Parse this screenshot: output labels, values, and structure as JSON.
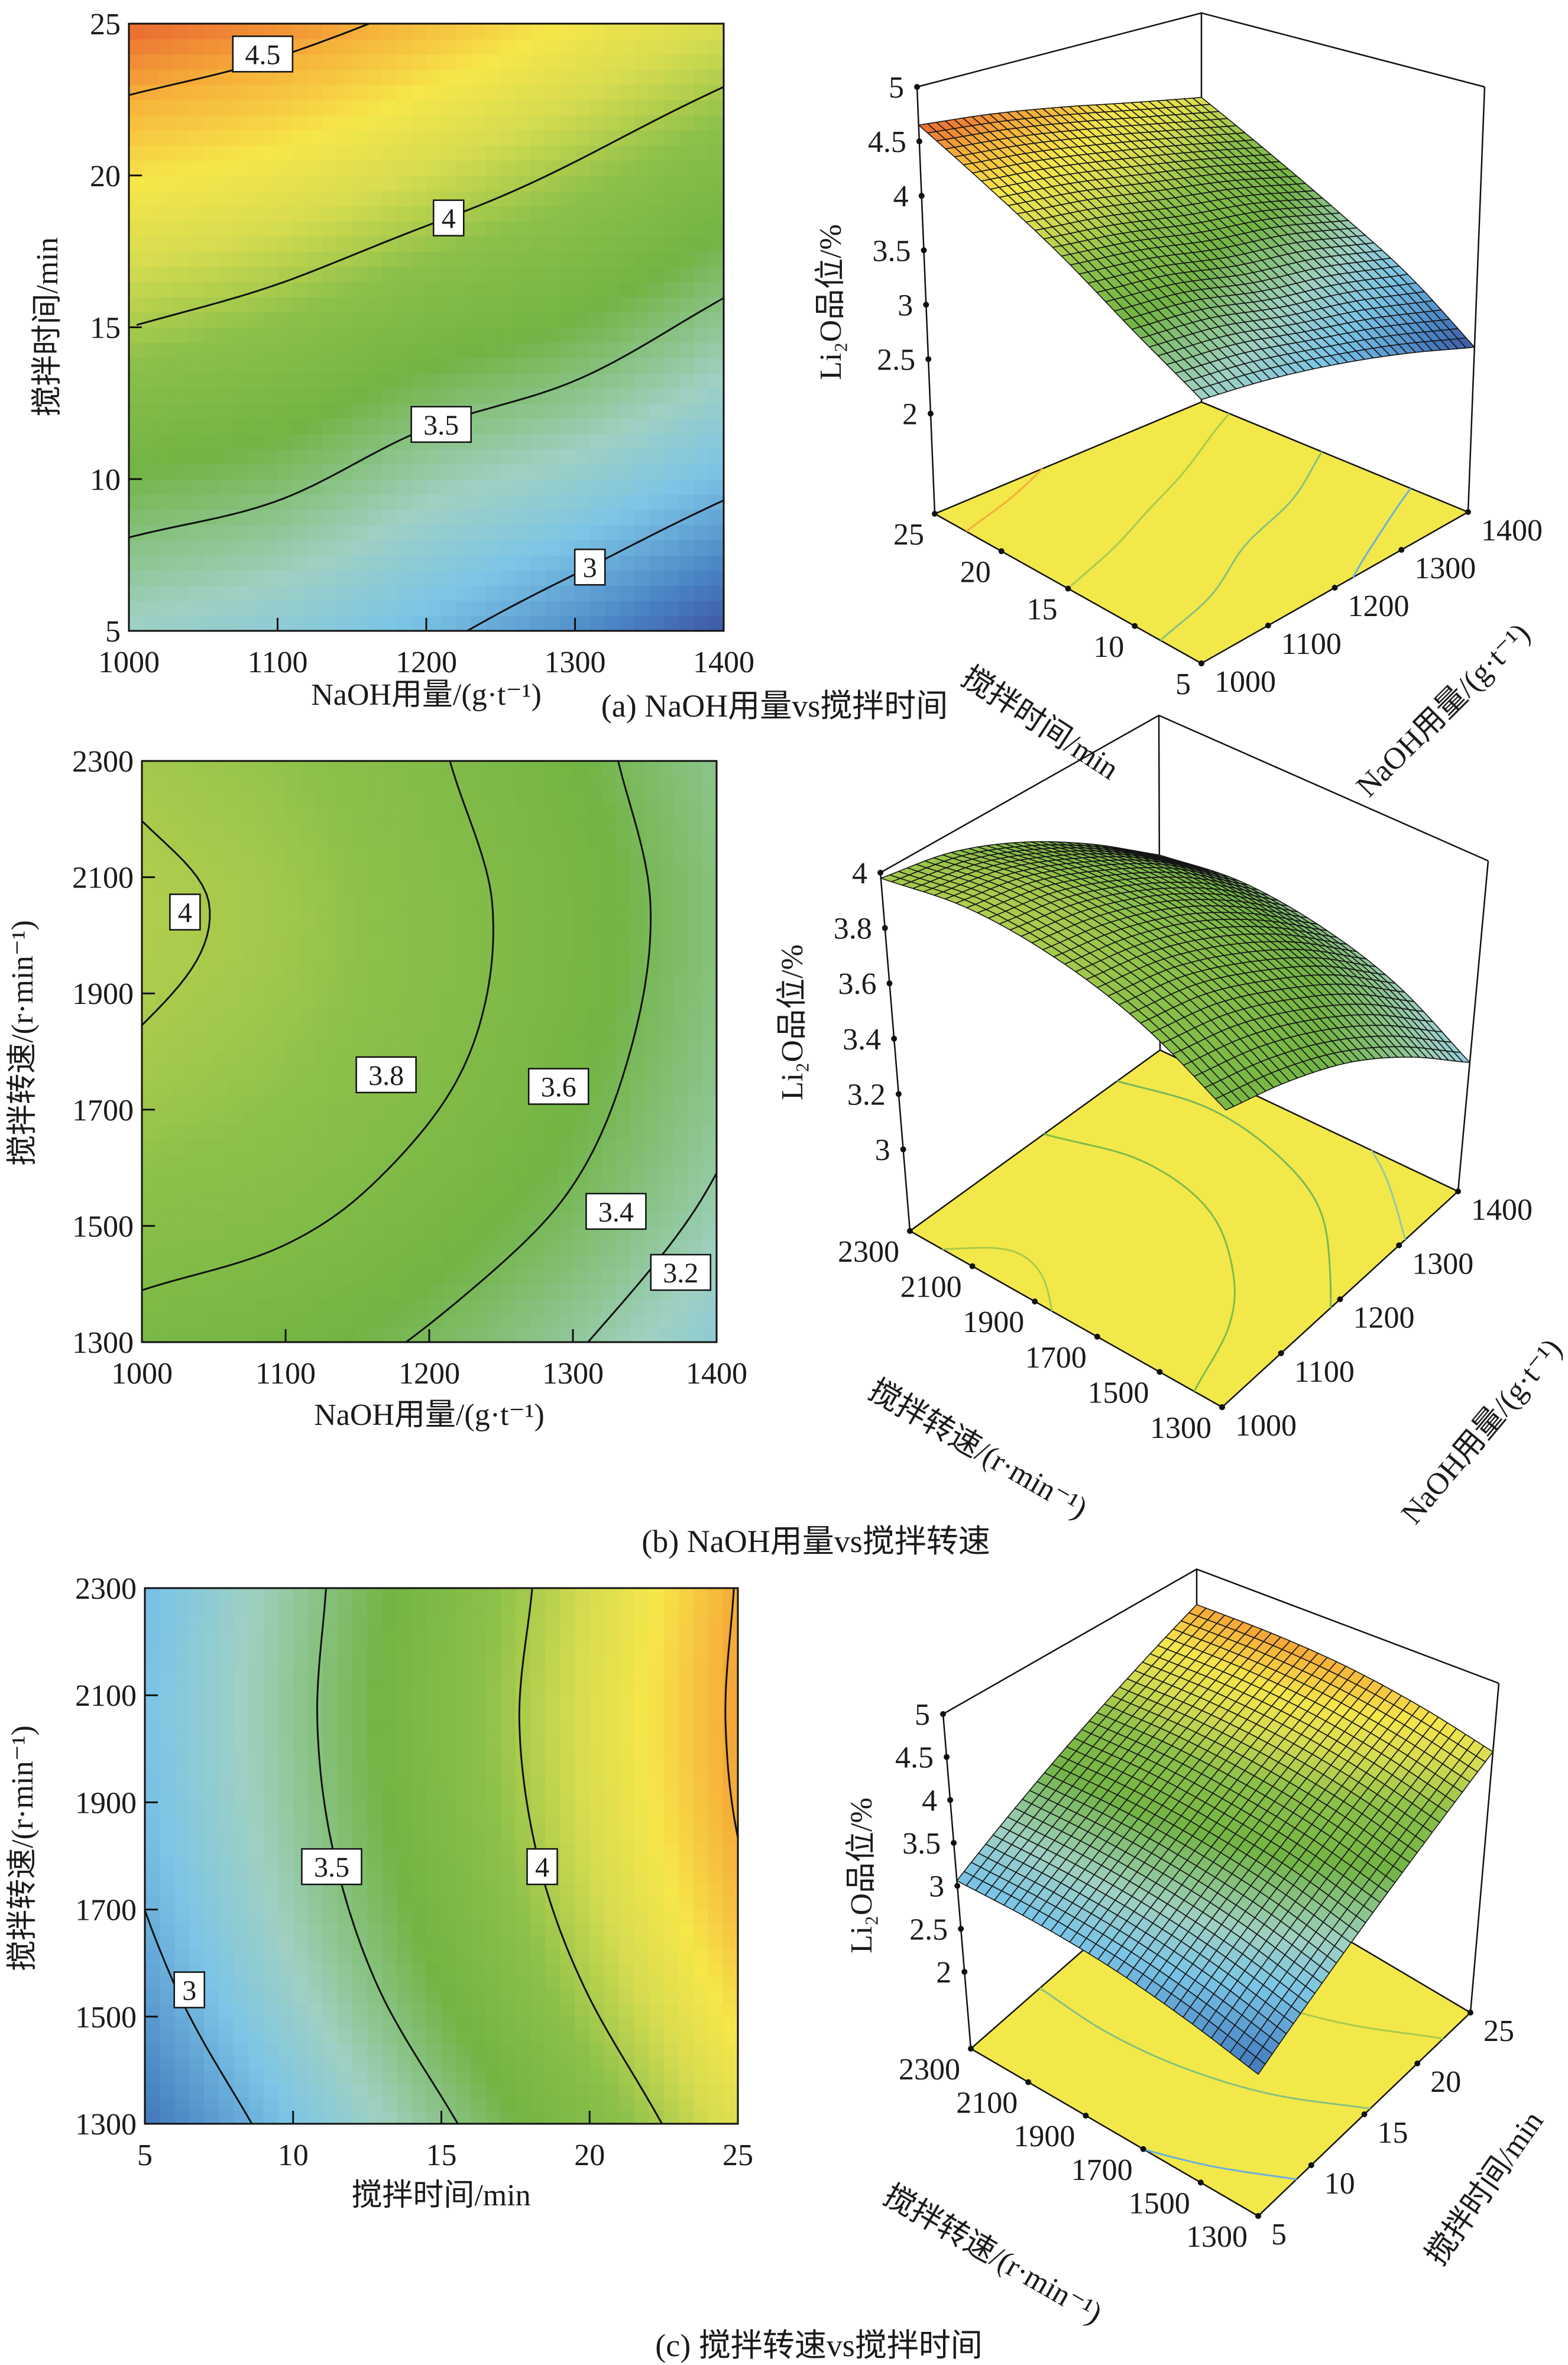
{
  "colormap": [
    "#3b4a9a",
    "#4a86c5",
    "#7cc5e6",
    "#9fd0c2",
    "#72b444",
    "#8cc04a",
    "#d6dc50",
    "#f6e64a",
    "#f6b23a",
    "#e33a2a"
  ],
  "colormap_range": [
    2.55,
    4.75
  ],
  "floor_color": "#f2e84a",
  "chart_data": [
    {
      "type": "heatmap",
      "caption": "(a) NaOH用量vs搅拌时间",
      "xlabel": "NaOH用量/(g·t⁻¹)",
      "ylabel": "搅拌时间/min",
      "zlabel": "Li₂O品位/%",
      "x": [
        1000,
        1100,
        1200,
        1300,
        1400
      ],
      "y": [
        5,
        10,
        15,
        20,
        25
      ],
      "z": [
        [
          3.3,
          3.2,
          3.05,
          2.85,
          2.6
        ],
        [
          3.63,
          3.55,
          3.38,
          3.25,
          3.06
        ],
        [
          4.0,
          3.9,
          3.75,
          3.63,
          3.43
        ],
        [
          4.33,
          4.25,
          4.12,
          3.97,
          3.79
        ],
        [
          4.65,
          4.57,
          4.45,
          4.3,
          4.15
        ]
      ],
      "xlim": [
        1000,
        1400
      ],
      "ylim": [
        5,
        25
      ],
      "xticks": [
        1000,
        1100,
        1200,
        1300,
        1400
      ],
      "yticks": [
        5,
        10,
        15,
        20,
        25
      ],
      "contour_levels": [
        3,
        3.5,
        4,
        4.5
      ],
      "contour_labels": [
        "3",
        "3.5",
        "4",
        "4.5"
      ],
      "surface": {
        "type": "surface3d",
        "zticks": [
          2,
          2.5,
          3,
          3.5,
          4,
          4.5,
          5
        ],
        "zlim": [
          2,
          5
        ]
      }
    },
    {
      "type": "heatmap",
      "caption": "(b) NaOH用量vs搅拌转速",
      "xlabel": "NaOH用量/(g·t⁻¹)",
      "ylabel": "搅拌转速/(r·min⁻¹)",
      "zlabel": "Li₂O品位/%",
      "x": [
        1000,
        1100,
        1200,
        1300,
        1400
      ],
      "y": [
        1300,
        1550,
        1800,
        2050,
        2300
      ],
      "z": [
        [
          3.74,
          3.68,
          3.58,
          3.42,
          3.21
        ],
        [
          3.9,
          3.85,
          3.74,
          3.59,
          3.38
        ],
        [
          3.99,
          3.94,
          3.84,
          3.68,
          3.47
        ],
        [
          4.02,
          3.97,
          3.86,
          3.71,
          3.5
        ],
        [
          3.98,
          3.93,
          3.82,
          3.66,
          3.46
        ]
      ],
      "xlim": [
        1000,
        1400
      ],
      "ylim": [
        1300,
        2300
      ],
      "xticks": [
        1000,
        1100,
        1200,
        1300,
        1400
      ],
      "yticks": [
        1300,
        1500,
        1700,
        1900,
        2100,
        2300
      ],
      "contour_levels": [
        3.2,
        3.4,
        3.6,
        3.8,
        4
      ],
      "contour_labels": [
        "3.2",
        "3.4",
        "3.6",
        "3.8",
        "4"
      ],
      "surface": {
        "type": "surface3d",
        "zticks": [
          3,
          3.2,
          3.4,
          3.6,
          3.8,
          4
        ],
        "zlim": [
          3,
          4
        ]
      }
    },
    {
      "type": "heatmap",
      "caption": "(c) 搅拌转速vs搅拌时间",
      "xlabel": "搅拌时间/min",
      "ylabel": "搅拌转速/(r·min⁻¹)",
      "zlabel": "Li₂O品位/%",
      "x": [
        5,
        10,
        15,
        20,
        25
      ],
      "y": [
        1300,
        1550,
        1800,
        2050,
        2300
      ],
      "z": [
        [
          2.74,
          3.1,
          3.46,
          3.82,
          4.19
        ],
        [
          2.92,
          3.29,
          3.65,
          4.01,
          4.37
        ],
        [
          3.04,
          3.4,
          3.76,
          4.13,
          4.49
        ],
        [
          3.08,
          3.44,
          3.81,
          4.17,
          4.53
        ],
        [
          3.06,
          3.42,
          3.78,
          4.14,
          4.51
        ]
      ],
      "xlim": [
        5,
        25
      ],
      "ylim": [
        1300,
        2300
      ],
      "xticks": [
        5,
        10,
        15,
        20,
        25
      ],
      "yticks": [
        1300,
        1500,
        1700,
        1900,
        2100,
        2300
      ],
      "contour_levels": [
        3,
        3.5,
        4,
        4.5
      ],
      "contour_labels": [
        "3",
        "3.5",
        "4"
      ],
      "surface": {
        "type": "surface3d",
        "zticks": [
          2,
          2.5,
          3,
          3.5,
          4,
          4.5,
          5
        ],
        "zlim": [
          2,
          5
        ]
      }
    }
  ]
}
